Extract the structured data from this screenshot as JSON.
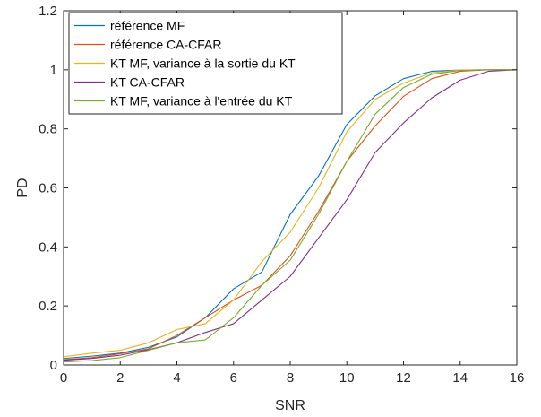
{
  "chart_data": {
    "type": "line",
    "xlabel": "SNR",
    "ylabel": "PD",
    "xlim": [
      0,
      16
    ],
    "ylim": [
      0,
      1.2
    ],
    "xticks": [
      "0",
      "2",
      "4",
      "6",
      "8",
      "10",
      "12",
      "14",
      "16"
    ],
    "yticks": [
      "0",
      "0.2",
      "0.4",
      "0.6",
      "0.8",
      "1",
      "1.2"
    ],
    "grid": false,
    "legend_position": "top-left",
    "x": [
      0,
      1,
      2,
      3,
      4,
      5,
      6,
      7,
      8,
      9,
      10,
      11,
      12,
      13,
      14,
      15,
      16
    ],
    "series": [
      {
        "name": "référence MF",
        "color": "#0072BD",
        "values": [
          0.022,
          0.03,
          0.04,
          0.06,
          0.095,
          0.16,
          0.258,
          0.315,
          0.51,
          0.64,
          0.815,
          0.912,
          0.97,
          0.995,
          0.999,
          1.0,
          1.0
        ]
      },
      {
        "name": "référence CA-CFAR",
        "color": "#D95319",
        "values": [
          0.018,
          0.025,
          0.038,
          0.055,
          0.1,
          0.16,
          0.22,
          0.27,
          0.37,
          0.52,
          0.69,
          0.81,
          0.91,
          0.97,
          0.995,
          1.0,
          1.0
        ]
      },
      {
        "name": "KT MF, variance à la sortie du KT",
        "color": "#EDB120",
        "values": [
          0.028,
          0.04,
          0.05,
          0.075,
          0.12,
          0.14,
          0.22,
          0.35,
          0.45,
          0.6,
          0.79,
          0.9,
          0.955,
          0.99,
          0.999,
          1.0,
          1.0
        ]
      },
      {
        "name": "KT CA-CFAR",
        "color": "#7E2F8E",
        "values": [
          0.016,
          0.022,
          0.033,
          0.052,
          0.075,
          0.11,
          0.14,
          0.22,
          0.3,
          0.43,
          0.56,
          0.72,
          0.82,
          0.905,
          0.965,
          0.995,
          1.0
        ]
      },
      {
        "name": "KT MF, variance à l'entrée du KT",
        "color": "#77AC30",
        "values": [
          0.01,
          0.015,
          0.025,
          0.05,
          0.075,
          0.085,
          0.16,
          0.27,
          0.355,
          0.51,
          0.69,
          0.85,
          0.94,
          0.985,
          0.998,
          1.0,
          1.0
        ]
      }
    ]
  }
}
